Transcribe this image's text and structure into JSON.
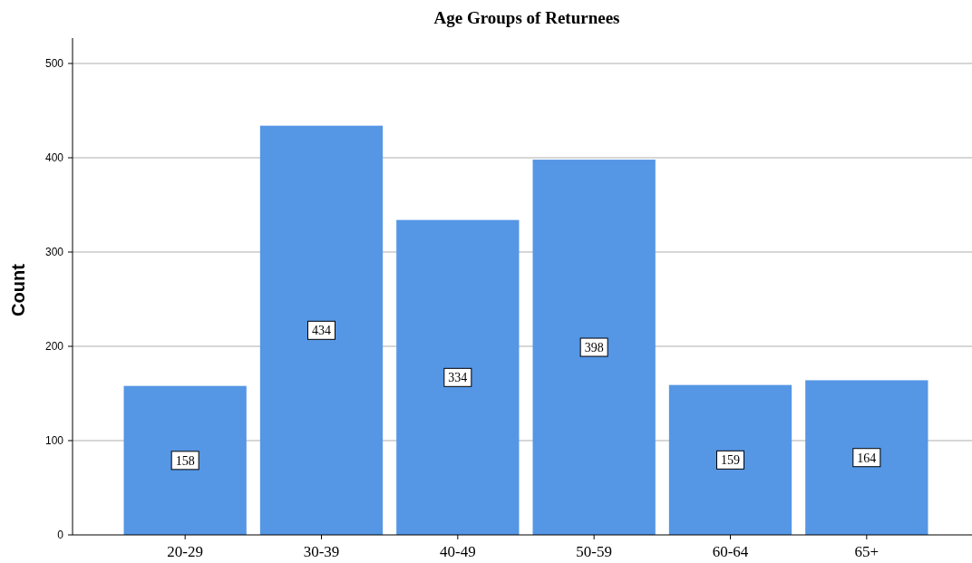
{
  "chart_data": {
    "type": "bar",
    "title": "Age Groups of Returnees",
    "ylabel": "Count",
    "categories": [
      "20-29",
      "30-39",
      "40-49",
      "50-59",
      "60-64",
      "65+"
    ],
    "values": [
      158,
      434,
      334,
      398,
      159,
      164
    ],
    "color": "#5596e5",
    "ylim": [
      0,
      500
    ],
    "yticks": [
      0,
      100,
      200,
      300,
      400,
      500
    ],
    "grid": "y",
    "data_labels": true
  }
}
